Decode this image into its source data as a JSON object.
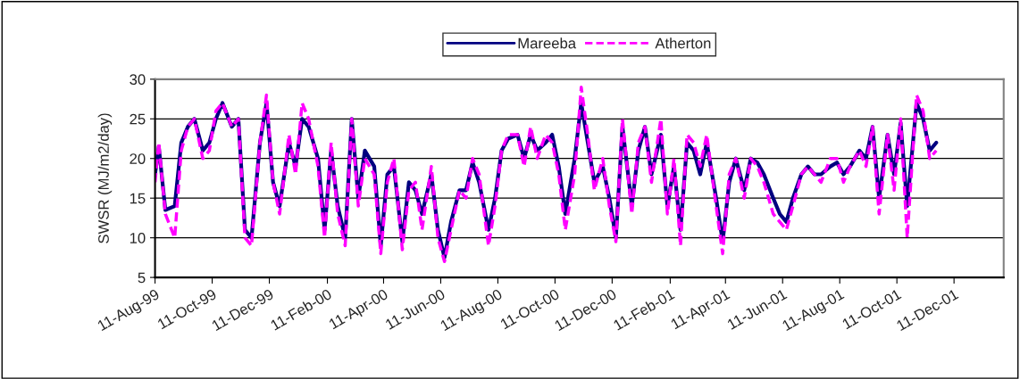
{
  "chart_data": {
    "type": "line",
    "ylabel": "SWSR (MJ/m2/day)",
    "x": [
      "1999-08-11",
      "1999-08-15",
      "1999-08-22",
      "1999-09-01",
      "1999-09-08",
      "1999-09-15",
      "1999-09-22",
      "1999-10-01",
      "1999-10-08",
      "1999-10-15",
      "1999-10-22",
      "1999-11-01",
      "1999-11-08",
      "1999-11-15",
      "1999-11-22",
      "1999-12-01",
      "1999-12-08",
      "1999-12-15",
      "1999-12-22",
      "2000-01-01",
      "2000-01-08",
      "2000-01-15",
      "2000-01-22",
      "2000-02-01",
      "2000-02-08",
      "2000-02-15",
      "2000-02-22",
      "2000-03-01",
      "2000-03-08",
      "2000-03-15",
      "2000-03-22",
      "2000-04-01",
      "2000-04-08",
      "2000-04-15",
      "2000-04-22",
      "2000-05-01",
      "2000-05-08",
      "2000-05-15",
      "2000-05-22",
      "2000-06-01",
      "2000-06-08",
      "2000-06-15",
      "2000-06-22",
      "2000-07-01",
      "2000-07-08",
      "2000-07-15",
      "2000-07-22",
      "2000-08-01",
      "2000-08-08",
      "2000-08-15",
      "2000-08-22",
      "2000-09-01",
      "2000-09-08",
      "2000-09-15",
      "2000-09-22",
      "2000-10-01",
      "2000-10-08",
      "2000-10-15",
      "2000-10-22",
      "2000-11-01",
      "2000-11-08",
      "2000-11-15",
      "2000-11-22",
      "2000-12-01",
      "2000-12-08",
      "2000-12-15",
      "2000-12-22",
      "2001-01-01",
      "2001-01-08",
      "2001-01-15",
      "2001-01-22",
      "2001-02-01",
      "2001-02-08",
      "2001-02-15",
      "2001-02-22",
      "2001-03-01",
      "2001-03-08",
      "2001-03-15",
      "2001-03-22",
      "2001-04-01",
      "2001-04-08",
      "2001-04-15",
      "2001-04-22",
      "2001-05-01",
      "2001-05-08",
      "2001-05-15",
      "2001-05-22",
      "2001-06-01",
      "2001-06-08",
      "2001-06-15",
      "2001-06-22",
      "2001-07-01",
      "2001-07-08",
      "2001-07-15",
      "2001-07-22",
      "2001-08-01",
      "2001-08-08",
      "2001-08-15",
      "2001-08-22",
      "2001-09-01",
      "2001-09-08",
      "2001-09-15",
      "2001-09-22",
      "2001-10-01",
      "2001-10-08",
      "2001-10-15",
      "2001-10-22",
      "2001-11-01",
      "2001-11-08",
      "2001-11-15",
      "2001-11-22"
    ],
    "series": [
      {
        "name": "Mareeba",
        "color": "#000080",
        "line_style": "solid",
        "values": [
          18,
          21.5,
          13.5,
          14,
          22,
          24,
          25,
          21,
          22,
          25,
          27,
          24,
          25,
          11,
          10,
          22,
          27,
          17,
          14,
          22,
          19,
          25,
          24,
          20,
          11,
          21,
          14,
          10,
          25,
          15,
          21,
          19,
          9,
          18,
          19,
          9.5,
          17,
          16,
          13,
          18,
          11,
          7.5,
          12,
          16,
          16,
          19.5,
          17,
          11,
          15,
          21,
          22.5,
          23,
          20,
          23,
          21,
          22,
          23,
          19,
          13,
          20,
          27,
          22,
          17,
          19,
          15,
          10,
          24,
          14,
          21,
          24,
          18,
          23,
          14,
          19,
          11,
          22,
          21,
          18,
          22,
          15,
          9.5,
          17,
          20,
          16,
          20,
          19.5,
          18,
          15,
          13,
          12,
          15,
          18,
          19,
          18,
          18,
          19,
          19.5,
          18,
          19,
          21,
          20,
          24,
          15,
          23,
          18,
          24.5,
          14,
          27,
          25,
          21,
          22
        ]
      },
      {
        "name": "Atherton",
        "color": "#ff00ff",
        "line_style": "dashed",
        "values": [
          17,
          22,
          13,
          10,
          21,
          24,
          25,
          20,
          21,
          26,
          27,
          24,
          25,
          10,
          9,
          22,
          28,
          17,
          13,
          23,
          18,
          27,
          25,
          19,
          10,
          22,
          13,
          9,
          25,
          14,
          20,
          18,
          8,
          17,
          20,
          8.5,
          16,
          17,
          11,
          19,
          10,
          7,
          11,
          16,
          15,
          20,
          18,
          9,
          14,
          21,
          23,
          23,
          19,
          24,
          20,
          23,
          22,
          18,
          11,
          18,
          29,
          23,
          16,
          20,
          14,
          9.5,
          25,
          13,
          22,
          24,
          17,
          25,
          13,
          20,
          9,
          23,
          22,
          19,
          23,
          14,
          8,
          18,
          20,
          15,
          20,
          19,
          17,
          13,
          12,
          11,
          14,
          18,
          19,
          18,
          17,
          20,
          20,
          17,
          19,
          21,
          19,
          24,
          13,
          23,
          16,
          25,
          10,
          28,
          26,
          20,
          21
        ]
      }
    ],
    "xlim": [
      "1999-08-11",
      "2002-02-02"
    ],
    "xticks": [
      {
        "value": "1999-08-11",
        "label": "11-Aug-99"
      },
      {
        "value": "1999-10-11",
        "label": "11-Oct-99"
      },
      {
        "value": "1999-12-11",
        "label": "11-Dec-99"
      },
      {
        "value": "2000-02-11",
        "label": "11-Feb-00"
      },
      {
        "value": "2000-04-11",
        "label": "11-Apr-00"
      },
      {
        "value": "2000-06-11",
        "label": "11-Jun-00"
      },
      {
        "value": "2000-08-11",
        "label": "11-Aug-00"
      },
      {
        "value": "2000-10-11",
        "label": "11-Oct-00"
      },
      {
        "value": "2000-12-11",
        "label": "11-Dec-00"
      },
      {
        "value": "2001-02-11",
        "label": "11-Feb-01"
      },
      {
        "value": "2001-04-11",
        "label": "11-Apr-01"
      },
      {
        "value": "2001-06-11",
        "label": "11-Jun-01"
      },
      {
        "value": "2001-08-11",
        "label": "11-Aug-01"
      },
      {
        "value": "2001-10-11",
        "label": "11-Oct-01"
      },
      {
        "value": "2001-12-11",
        "label": "11-Dec-01"
      }
    ],
    "ylim": [
      5,
      30
    ],
    "yticks": [
      5,
      10,
      15,
      20,
      25,
      30
    ],
    "grid": "y",
    "legend": "top",
    "marker": "none"
  }
}
